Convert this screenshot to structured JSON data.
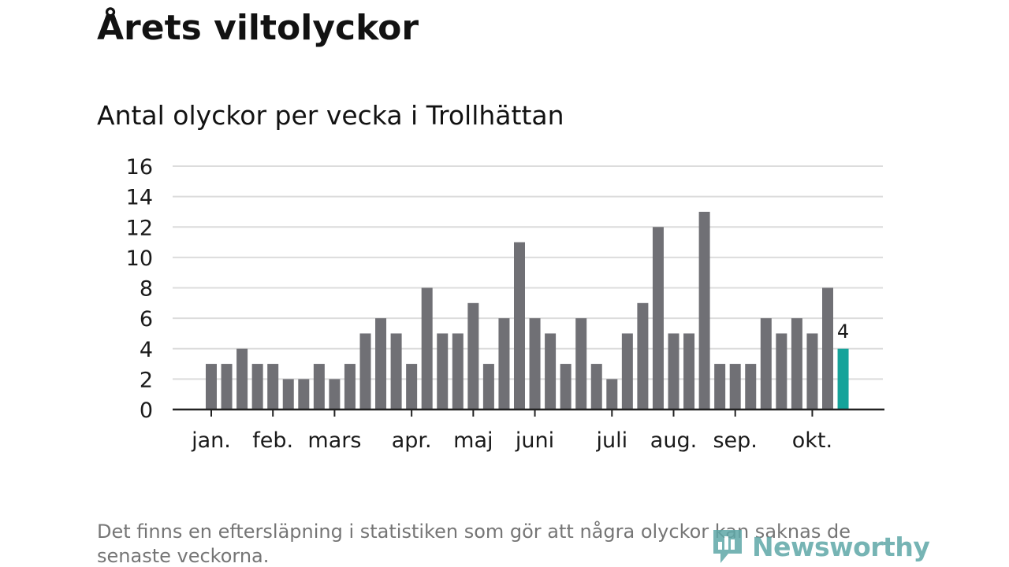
{
  "header": {
    "title": "Årets viltolyckor",
    "subtitle": "Antal olyckor per vecka i Trollhättan"
  },
  "footnote": "Det finns en eftersläpning i statistiken som gör att några olyckor kan saknas de senaste veckorna.",
  "brand": {
    "name": "Newsworthy",
    "icon": "newsworthy-logo-icon"
  },
  "colors": {
    "bar": "#707075",
    "highlight": "#15a39a",
    "grid": "#dcdcdc",
    "axis": "#222222",
    "text": "#1a1a1a",
    "brand": "#5fa8a8"
  },
  "chart_data": {
    "type": "bar",
    "title": "Antal olyckor per vecka i Trollhättan",
    "xlabel": "",
    "ylabel": "",
    "ylim": [
      0,
      16
    ],
    "yticks": [
      "0",
      "2",
      "4",
      "6",
      "8",
      "10",
      "12",
      "14",
      "16"
    ],
    "grid": true,
    "weeks": [
      1,
      2,
      3,
      4,
      5,
      6,
      7,
      8,
      9,
      10,
      11,
      12,
      13,
      14,
      15,
      16,
      17,
      18,
      19,
      20,
      21,
      22,
      23,
      24,
      25,
      26,
      27,
      28,
      29,
      30,
      31,
      32,
      33,
      34,
      35,
      36,
      37,
      38,
      39,
      40,
      41,
      42
    ],
    "values": [
      3,
      3,
      4,
      3,
      3,
      2,
      2,
      3,
      2,
      3,
      5,
      6,
      5,
      3,
      8,
      5,
      5,
      7,
      3,
      6,
      11,
      6,
      5,
      3,
      6,
      3,
      2,
      5,
      7,
      12,
      5,
      5,
      13,
      3,
      3,
      3,
      6,
      5,
      6,
      5,
      8,
      4
    ],
    "highlight": {
      "week": 42,
      "value": 4,
      "label": "4"
    },
    "month_labels": [
      {
        "label": "jan.",
        "week": 1
      },
      {
        "label": "feb.",
        "week": 5
      },
      {
        "label": "mars",
        "week": 9
      },
      {
        "label": "apr.",
        "week": 14
      },
      {
        "label": "maj",
        "week": 18
      },
      {
        "label": "juni",
        "week": 22
      },
      {
        "label": "juli",
        "week": 27
      },
      {
        "label": "aug.",
        "week": 31
      },
      {
        "label": "sep.",
        "week": 35
      },
      {
        "label": "okt.",
        "week": 40
      }
    ]
  }
}
